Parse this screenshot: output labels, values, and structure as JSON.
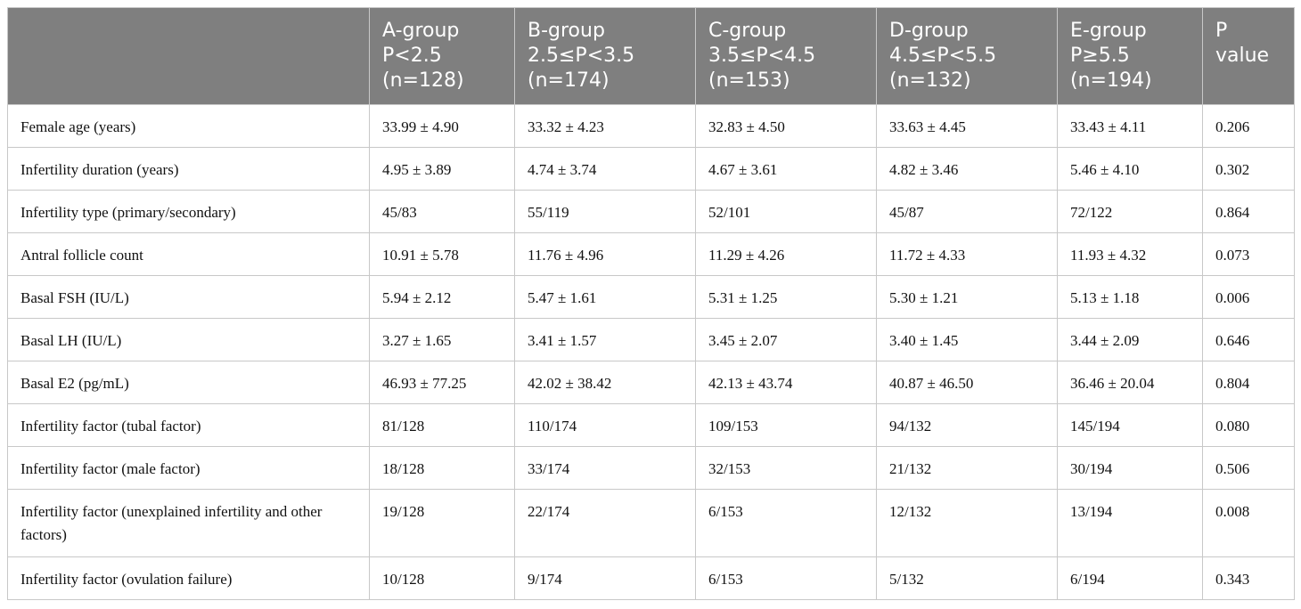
{
  "table": {
    "headers": [
      {
        "lines": [
          "",
          "",
          ""
        ]
      },
      {
        "lines": [
          "A-group",
          "P<2.5",
          "(n=128)"
        ]
      },
      {
        "lines": [
          "B-group",
          "2.5≤P<3.5",
          "(n=174)"
        ]
      },
      {
        "lines": [
          "C-group",
          "3.5≤P<4.5",
          "(n=153)"
        ]
      },
      {
        "lines": [
          "D-group",
          "4.5≤P<5.5",
          "(n=132)"
        ]
      },
      {
        "lines": [
          "E-group",
          "P≥5.5",
          "(n=194)"
        ]
      },
      {
        "lines": [
          "P",
          "value",
          ""
        ]
      }
    ],
    "rows": [
      [
        "Female age (years)",
        "33.99 ± 4.90",
        "33.32 ± 4.23",
        "32.83 ± 4.50",
        "33.63 ± 4.45",
        "33.43 ± 4.11",
        "0.206"
      ],
      [
        "Infertility duration (years)",
        "4.95 ± 3.89",
        "4.74 ± 3.74",
        "4.67 ± 3.61",
        "4.82 ± 3.46",
        "5.46 ± 4.10",
        "0.302"
      ],
      [
        "Infertility type (primary/secondary)",
        "45/83",
        "55/119",
        "52/101",
        "45/87",
        "72/122",
        "0.864"
      ],
      [
        "Antral follicle count",
        "10.91 ± 5.78",
        "11.76 ± 4.96",
        "11.29 ± 4.26",
        "11.72 ± 4.33",
        "11.93 ± 4.32",
        "0.073"
      ],
      [
        "Basal FSH (IU/L)",
        "5.94 ± 2.12",
        "5.47 ± 1.61",
        "5.31 ± 1.25",
        "5.30 ± 1.21",
        "5.13 ± 1.18",
        "0.006"
      ],
      [
        "Basal LH (IU/L)",
        "3.27 ± 1.65",
        "3.41 ± 1.57",
        "3.45 ± 2.07",
        "3.40 ± 1.45",
        "3.44 ± 2.09",
        "0.646"
      ],
      [
        "Basal E2 (pg/mL)",
        "46.93 ± 77.25",
        "42.02 ± 38.42",
        "42.13 ± 43.74",
        "40.87 ± 46.50",
        "36.46 ± 20.04",
        "0.804"
      ],
      [
        "Infertility factor (tubal factor)",
        "81/128",
        "110/174",
        "109/153",
        "94/132",
        "145/194",
        "0.080"
      ],
      [
        "Infertility factor (male factor)",
        "18/128",
        "33/174",
        "32/153",
        "21/132",
        "30/194",
        "0.506"
      ],
      [
        "Infertility factor (unexplained infertility and other factors)",
        "19/128",
        "22/174",
        "6/153",
        "12/132",
        "13/194",
        "0.008"
      ],
      [
        "Infertility factor (ovulation failure)",
        "10/128",
        "9/174",
        "6/153",
        "5/132",
        "6/194",
        "0.343"
      ]
    ]
  }
}
